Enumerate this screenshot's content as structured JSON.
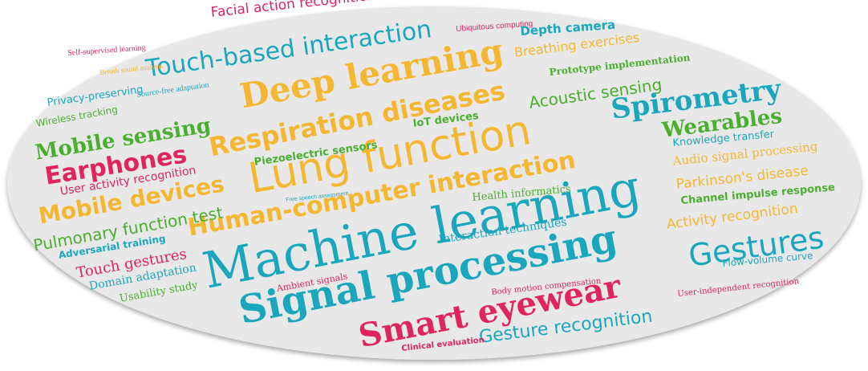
{
  "colors": {
    "background": "#e8e8e8",
    "teal": "#1aa7bd",
    "orange": "#f5b731",
    "pink": "#e0245e",
    "green": "#4aae2f"
  },
  "words": [
    {
      "text": "Facial action recognition",
      "color": "pink"
    },
    {
      "text": "Ubiquitous computing",
      "color": "pink"
    },
    {
      "text": "Touch-based interaction",
      "color": "teal"
    },
    {
      "text": "Depth camera",
      "color": "teal"
    },
    {
      "text": "Breathing exercises",
      "color": "orange"
    },
    {
      "text": "Self-supervised learning",
      "color": "pink"
    },
    {
      "text": "Prototype implementation",
      "color": "green"
    },
    {
      "text": "Breath sound analysis",
      "color": "orange"
    },
    {
      "text": "Deep learning",
      "color": "orange"
    },
    {
      "text": "Privacy-preserving",
      "color": "teal"
    },
    {
      "text": "Wireless tracking",
      "color": "green"
    },
    {
      "text": "Source-free adaptation",
      "color": "teal"
    },
    {
      "text": "Respiration diseases",
      "color": "orange"
    },
    {
      "text": "Acoustic sensing",
      "color": "green"
    },
    {
      "text": "Spirometry",
      "color": "teal"
    },
    {
      "text": "Mobile sensing",
      "color": "green"
    },
    {
      "text": "IoT devices",
      "color": "green"
    },
    {
      "text": "Lung function",
      "color": "orange"
    },
    {
      "text": "Wearables",
      "color": "green"
    },
    {
      "text": "Earphones",
      "color": "pink"
    },
    {
      "text": "Piezoelectric sensors",
      "color": "green"
    },
    {
      "text": "Knowledge transfer",
      "color": "teal"
    },
    {
      "text": "Audio signal processing",
      "color": "orange"
    },
    {
      "text": "User activity recognition",
      "color": "pink"
    },
    {
      "text": "Parkinson's disease",
      "color": "orange"
    },
    {
      "text": "Mobile devices",
      "color": "orange"
    },
    {
      "text": "Human-computer interaction",
      "color": "orange"
    },
    {
      "text": "Free speech assessment",
      "color": "teal"
    },
    {
      "text": "Health informatics",
      "color": "green"
    },
    {
      "text": "Channel impulse response",
      "color": "green"
    },
    {
      "text": "Pulmonary function test",
      "color": "green"
    },
    {
      "text": "Machine learning",
      "color": "teal"
    },
    {
      "text": "Activity recognition",
      "color": "orange"
    },
    {
      "text": "Adversarial training",
      "color": "teal"
    },
    {
      "text": "Interaction techniques",
      "color": "teal"
    },
    {
      "text": "Touch gestures",
      "color": "pink"
    },
    {
      "text": "Gestures",
      "color": "teal"
    },
    {
      "text": "Domain adaptation",
      "color": "teal"
    },
    {
      "text": "Signal processing",
      "color": "teal"
    },
    {
      "text": "Flow-volume curve",
      "color": "teal"
    },
    {
      "text": "Usability study",
      "color": "green"
    },
    {
      "text": "Ambient signals",
      "color": "pink"
    },
    {
      "text": "Body motion compensation",
      "color": "pink"
    },
    {
      "text": "User-independent recognition",
      "color": "pink"
    },
    {
      "text": "Smart eyewear",
      "color": "pink"
    },
    {
      "text": "Gesture recognition",
      "color": "teal"
    },
    {
      "text": "Clinical evaluation",
      "color": "pink"
    }
  ]
}
